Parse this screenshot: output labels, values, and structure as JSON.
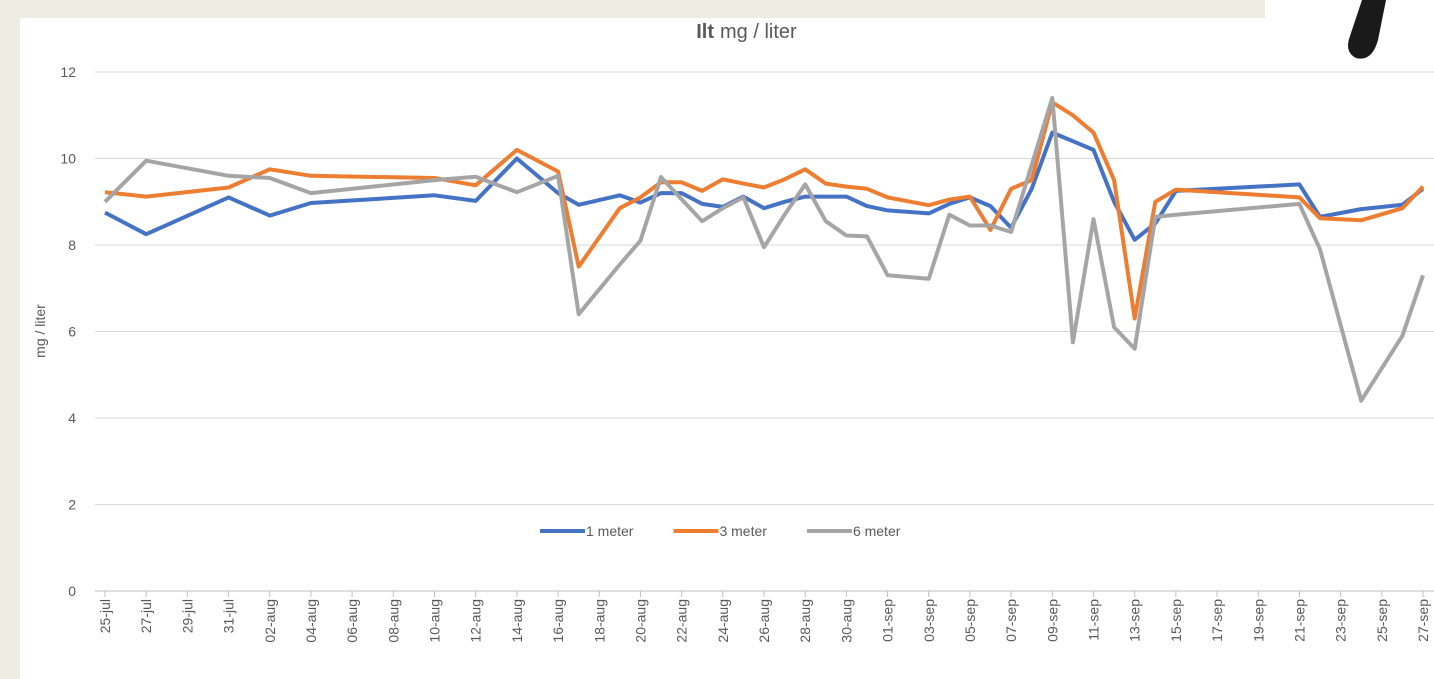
{
  "chart_data": {
    "type": "line",
    "title": "Ilt",
    "subtitle": "mg / liter",
    "y_label": "mg / liter",
    "x": [
      0,
      2,
      6,
      8,
      10,
      16,
      18,
      20,
      22,
      23,
      25,
      26,
      27,
      28,
      29,
      30,
      31,
      32,
      33,
      34,
      35,
      36,
      37,
      38,
      40,
      41,
      42,
      43,
      44,
      45,
      46,
      47,
      48,
      49,
      50,
      51,
      52,
      58,
      59,
      61,
      63,
      64
    ],
    "xlim": [
      0,
      64
    ],
    "xticks": [
      {
        "value": 0,
        "label": "25-jul"
      },
      {
        "value": 2,
        "label": "27-jul"
      },
      {
        "value": 4,
        "label": "29-jul"
      },
      {
        "value": 6,
        "label": "31-jul"
      },
      {
        "value": 8,
        "label": "02-aug"
      },
      {
        "value": 10,
        "label": "04-aug"
      },
      {
        "value": 12,
        "label": "06-aug"
      },
      {
        "value": 14,
        "label": "08-aug"
      },
      {
        "value": 16,
        "label": "10-aug"
      },
      {
        "value": 18,
        "label": "12-aug"
      },
      {
        "value": 20,
        "label": "14-aug"
      },
      {
        "value": 22,
        "label": "16-aug"
      },
      {
        "value": 24,
        "label": "18-aug"
      },
      {
        "value": 26,
        "label": "20-aug"
      },
      {
        "value": 28,
        "label": "22-aug"
      },
      {
        "value": 30,
        "label": "24-aug"
      },
      {
        "value": 32,
        "label": "26-aug"
      },
      {
        "value": 34,
        "label": "28-aug"
      },
      {
        "value": 36,
        "label": "30-aug"
      },
      {
        "value": 38,
        "label": "01-sep"
      },
      {
        "value": 40,
        "label": "03-sep"
      },
      {
        "value": 42,
        "label": "05-sep"
      },
      {
        "value": 44,
        "label": "07-sep"
      },
      {
        "value": 46,
        "label": "09-sep"
      },
      {
        "value": 48,
        "label": "11-sep"
      },
      {
        "value": 50,
        "label": "13-sep"
      },
      {
        "value": 52,
        "label": "15-sep"
      },
      {
        "value": 54,
        "label": "17-sep"
      },
      {
        "value": 56,
        "label": "19-sep"
      },
      {
        "value": 58,
        "label": "21-sep"
      },
      {
        "value": 60,
        "label": "23-sep"
      },
      {
        "value": 62,
        "label": "25-sep"
      },
      {
        "value": 64,
        "label": "27-sep"
      }
    ],
    "ylim": [
      0,
      12
    ],
    "yticks": [
      0,
      2,
      4,
      6,
      8,
      10,
      12
    ],
    "grid": true,
    "legend": "bottom",
    "series": [
      {
        "name": "1 meter",
        "color": "#4472c4",
        "values": [
          8.75,
          8.25,
          9.1,
          8.68,
          8.97,
          9.15,
          9.02,
          10.0,
          9.2,
          8.93,
          9.15,
          8.98,
          9.2,
          9.2,
          8.95,
          8.88,
          9.12,
          8.85,
          9.0,
          9.12,
          9.12,
          9.12,
          8.9,
          8.8,
          8.73,
          8.95,
          9.1,
          8.9,
          8.4,
          9.3,
          10.6,
          10.4,
          10.2,
          9.0,
          8.12,
          8.5,
          9.25,
          9.4,
          8.65,
          8.83,
          8.93,
          9.3
        ]
      },
      {
        "name": "3 meter",
        "color": "#ed7d31",
        "values": [
          9.22,
          9.12,
          9.33,
          9.75,
          9.6,
          9.55,
          9.38,
          10.2,
          9.7,
          7.5,
          8.85,
          9.1,
          9.45,
          9.45,
          9.25,
          9.52,
          9.42,
          9.33,
          9.52,
          9.75,
          9.42,
          9.35,
          9.3,
          9.1,
          8.92,
          9.05,
          9.12,
          8.35,
          9.3,
          9.5,
          11.3,
          11.0,
          10.6,
          9.5,
          6.3,
          9.0,
          9.28,
          9.1,
          8.62,
          8.57,
          8.85,
          9.35
        ]
      },
      {
        "name": "6 meter",
        "color": "#a5a5a5",
        "values": [
          9.0,
          9.95,
          9.6,
          9.55,
          9.2,
          9.5,
          9.58,
          9.22,
          9.6,
          6.4,
          7.55,
          8.1,
          9.57,
          9.06,
          8.55,
          8.85,
          9.1,
          7.95,
          8.7,
          9.4,
          8.55,
          8.22,
          8.2,
          7.3,
          7.22,
          8.7,
          8.45,
          8.45,
          8.3,
          9.85,
          11.4,
          5.75,
          8.6,
          6.1,
          5.6,
          8.65,
          8.7,
          8.95,
          7.9,
          4.4,
          5.9,
          7.3
        ]
      }
    ]
  }
}
